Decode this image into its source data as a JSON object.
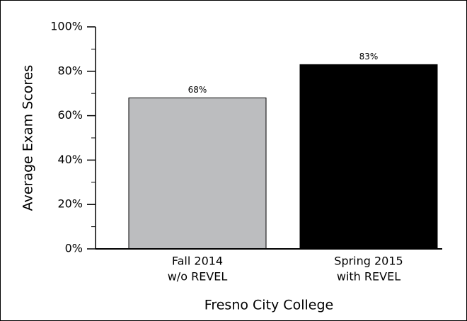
{
  "chart_data": {
    "type": "bar",
    "categories": [
      [
        "Fall 2014",
        "w/o REVEL"
      ],
      [
        "Spring 2015",
        "with REVEL"
      ]
    ],
    "values": [
      68,
      83
    ],
    "value_labels": [
      "68%",
      "83%"
    ],
    "colors": [
      "#bcbdbf",
      "#000000"
    ],
    "y_label": "Average Exam Scores",
    "x_label": "Fresno City College",
    "ylim": [
      0,
      100
    ],
    "yticks": [
      {
        "value": 0,
        "label": "0%"
      },
      {
        "value": 20,
        "label": "20%"
      },
      {
        "value": 40,
        "label": "40%"
      },
      {
        "value": 60,
        "label": "60%"
      },
      {
        "value": 80,
        "label": "80%"
      },
      {
        "value": 100,
        "label": "100%"
      }
    ],
    "yticks_minor": [
      10,
      30,
      50,
      70,
      90
    ]
  }
}
